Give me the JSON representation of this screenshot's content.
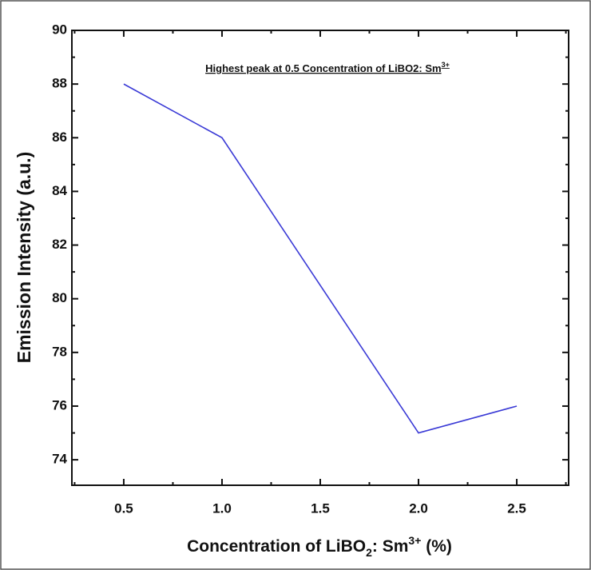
{
  "chart_data": {
    "type": "line",
    "annotation": {
      "text": "Highest peak at 0.5 Concentration of LiBO2: Sm",
      "sup": "3+"
    },
    "xlabel": {
      "parts": [
        "Concentration of LiBO",
        "2",
        ": Sm",
        "3+",
        " (%)"
      ]
    },
    "ylabel": "Emission Intensity (a.u.)",
    "x": [
      0.5,
      1.0,
      2.0,
      2.5
    ],
    "series": [
      {
        "color": "#3b3bd6",
        "values": [
          88,
          86,
          75,
          76
        ]
      }
    ],
    "xlim": [
      0.236,
      2.764
    ],
    "ylim": [
      73.05,
      90
    ],
    "xticks": [
      0.5,
      {
        "value": 1,
        "label": "1.0"
      },
      1.5,
      {
        "value": 2,
        "label": "2.0"
      },
      2.5
    ],
    "yticks": [
      74,
      76,
      78,
      80,
      82,
      84,
      86,
      88,
      90
    ],
    "xminor": [
      0.25,
      0.75,
      1.25,
      1.75,
      2.25,
      2.75
    ],
    "yminor": [
      75,
      77,
      79,
      81,
      83,
      85,
      87,
      89
    ]
  }
}
